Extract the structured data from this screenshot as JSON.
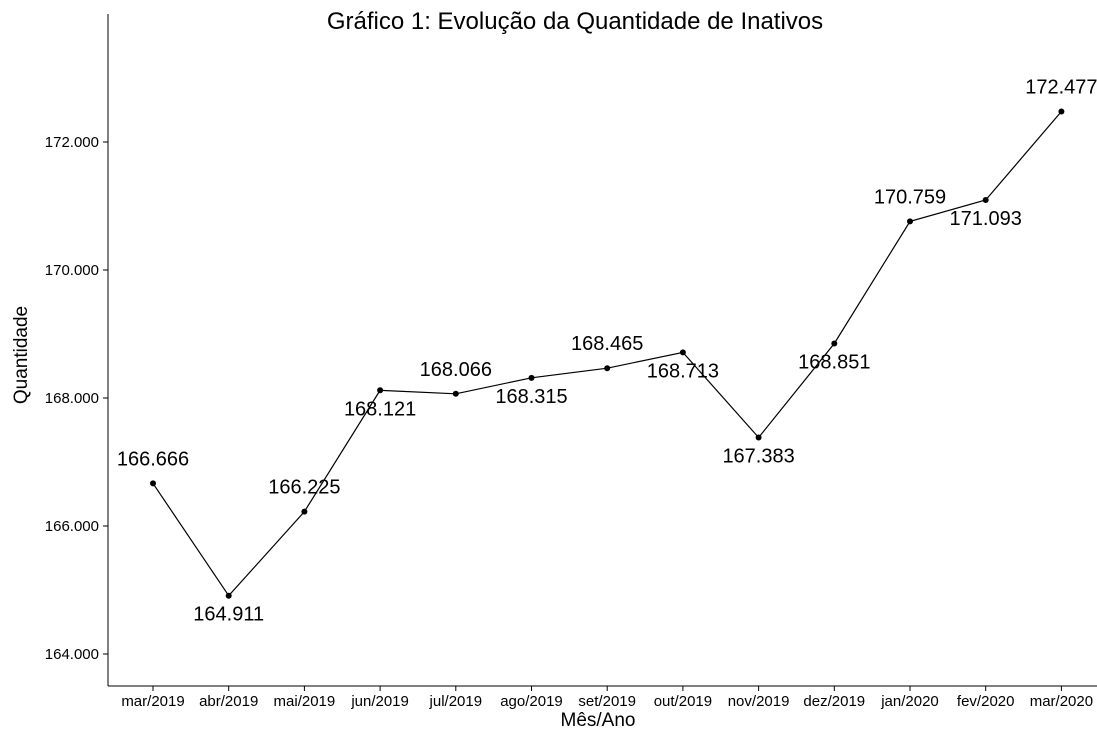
{
  "chart_data": {
    "type": "line",
    "title": "Gráfico 1: Evolução da Quantidade de Inativos",
    "xlabel": "Mês/Ano",
    "ylabel": "Quantidade",
    "categories": [
      "mar/2019",
      "abr/2019",
      "mai/2019",
      "jun/2019",
      "jul/2019",
      "ago/2019",
      "set/2019",
      "out/2019",
      "nov/2019",
      "dez/2019",
      "jan/2020",
      "fev/2020",
      "mar/2020"
    ],
    "values": [
      166666,
      164911,
      166225,
      168121,
      168066,
      168315,
      168465,
      168713,
      167383,
      168851,
      170759,
      171093,
      172477
    ],
    "value_labels": [
      "166.666",
      "164.911",
      "166.225",
      "168.121",
      "168.066",
      "168.315",
      "168.465",
      "168.713",
      "167.383",
      "168.851",
      "170.759",
      "171.093",
      "172.477"
    ],
    "y_ticks": [
      164000,
      166000,
      168000,
      170000,
      172000
    ],
    "y_tick_labels": [
      "164.000",
      "166.000",
      "168.000",
      "170.000",
      "172.000"
    ],
    "ylim": [
      163500,
      174000
    ],
    "grid": false,
    "legend": "none",
    "line_color": "#000000",
    "point_color": "#000000"
  }
}
